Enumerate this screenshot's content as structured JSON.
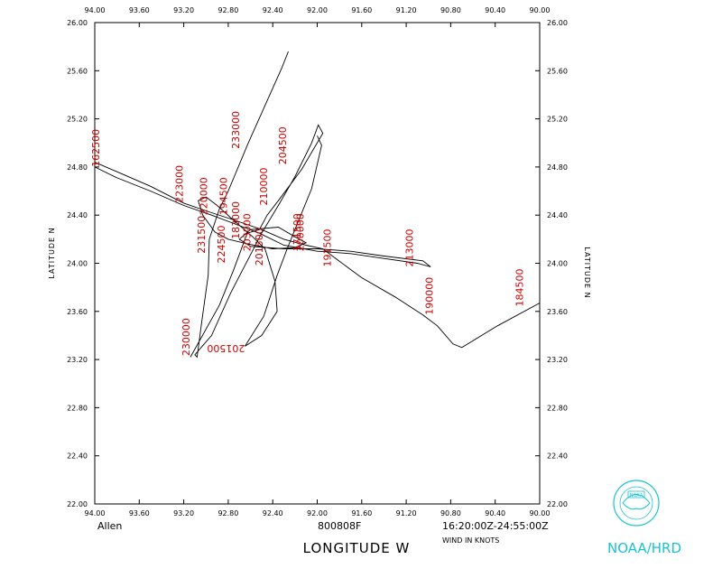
{
  "chart_data": {
    "type": "line",
    "xlabel": "LONGITUDE  W",
    "ylabel": "LATITUDE  N",
    "xlim": [
      94.0,
      90.0
    ],
    "ylim": [
      22.0,
      26.0
    ],
    "x_ticks": [
      "94.00",
      "93.60",
      "93.20",
      "92.80",
      "92.40",
      "92.00",
      "91.60",
      "91.20",
      "90.80",
      "90.40",
      "90.00"
    ],
    "y_ticks": [
      "22.00",
      "22.40",
      "22.80",
      "23.20",
      "23.60",
      "24.00",
      "24.40",
      "24.80",
      "25.20",
      "25.60",
      "26.00"
    ],
    "storm_name": "Allen",
    "flight_id": "800808F",
    "time_range": "16:20:00Z-24:55:00Z",
    "wind_units": "WIND IN KNOTS",
    "series": [
      {
        "points": [
          [
            90.0,
            23.67
          ],
          [
            90.38,
            23.48
          ],
          [
            90.7,
            23.3
          ],
          [
            90.78,
            23.33
          ],
          [
            90.92,
            23.48
          ],
          [
            91.05,
            23.57
          ],
          [
            91.3,
            23.72
          ],
          [
            91.6,
            23.88
          ],
          [
            91.82,
            24.03
          ],
          [
            91.95,
            24.12
          ],
          [
            92.1,
            24.15
          ],
          [
            92.3,
            24.2
          ],
          [
            92.5,
            24.28
          ],
          [
            92.75,
            24.36
          ],
          [
            92.95,
            24.42
          ],
          [
            93.2,
            24.5
          ],
          [
            93.5,
            24.64
          ],
          [
            93.8,
            24.76
          ],
          [
            94.0,
            24.84
          ]
        ]
      },
      {
        "points": [
          [
            94.0,
            24.8
          ],
          [
            93.8,
            24.71
          ],
          [
            93.5,
            24.6
          ],
          [
            93.2,
            24.48
          ],
          [
            92.95,
            24.4
          ],
          [
            92.75,
            24.33
          ],
          [
            92.52,
            24.25
          ],
          [
            92.3,
            24.15
          ],
          [
            92.0,
            24.1
          ],
          [
            91.7,
            24.08
          ],
          [
            91.4,
            24.04
          ],
          [
            91.1,
            24.0
          ],
          [
            90.98,
            23.97
          ],
          [
            91.05,
            24.02
          ],
          [
            91.4,
            24.06
          ],
          [
            91.7,
            24.1
          ],
          [
            92.0,
            24.12
          ],
          [
            92.3,
            24.12
          ],
          [
            92.6,
            24.14
          ],
          [
            92.7,
            24.2
          ],
          [
            92.6,
            24.28
          ],
          [
            92.35,
            24.3
          ],
          [
            92.2,
            24.22
          ],
          [
            92.1,
            24.17
          ],
          [
            92.2,
            24.13
          ],
          [
            92.4,
            24.12
          ],
          [
            92.62,
            24.16
          ],
          [
            92.8,
            24.2
          ],
          [
            92.92,
            24.26
          ],
          [
            93.03,
            24.4
          ],
          [
            93.07,
            24.52
          ],
          [
            93.0,
            24.55
          ],
          [
            92.9,
            24.48
          ],
          [
            92.78,
            24.38
          ],
          [
            92.58,
            24.22
          ],
          [
            92.47,
            24.12
          ],
          [
            92.38,
            23.85
          ],
          [
            92.36,
            23.6
          ],
          [
            92.5,
            23.4
          ],
          [
            92.65,
            23.31
          ],
          [
            92.48,
            23.56
          ],
          [
            92.36,
            23.9
          ],
          [
            92.27,
            24.12
          ],
          [
            92.2,
            24.28
          ],
          [
            92.05,
            24.62
          ],
          [
            91.96,
            24.98
          ],
          [
            92.0,
            25.06
          ]
        ]
      },
      {
        "points": [
          [
            93.14,
            23.22
          ],
          [
            92.88,
            23.65
          ],
          [
            92.75,
            23.95
          ],
          [
            92.63,
            24.25
          ],
          [
            92.52,
            24.28
          ],
          [
            92.45,
            24.4
          ],
          [
            92.35,
            24.52
          ],
          [
            92.14,
            24.78
          ],
          [
            91.95,
            25.08
          ],
          [
            91.99,
            25.15
          ],
          [
            92.05,
            25.0
          ],
          [
            92.2,
            24.72
          ],
          [
            92.35,
            24.48
          ],
          [
            92.5,
            24.25
          ],
          [
            92.78,
            23.75
          ],
          [
            92.95,
            23.4
          ],
          [
            93.1,
            23.24
          ],
          [
            93.08,
            23.22
          ],
          [
            93.04,
            23.5
          ],
          [
            92.98,
            23.9
          ],
          [
            92.97,
            24.2
          ],
          [
            92.88,
            24.45
          ],
          [
            92.8,
            24.6
          ],
          [
            92.62,
            25.0
          ],
          [
            92.45,
            25.35
          ],
          [
            92.32,
            25.62
          ],
          [
            92.26,
            25.76
          ]
        ]
      }
    ],
    "annotations": [
      {
        "text": "162500",
        "lon": 93.96,
        "lat": 24.8,
        "rot": -90
      },
      {
        "text": "223000",
        "lon": 93.21,
        "lat": 24.5,
        "rot": -90
      },
      {
        "text": "220000",
        "lon": 92.99,
        "lat": 24.4,
        "rot": -90
      },
      {
        "text": "231500",
        "lon": 93.01,
        "lat": 24.08,
        "rot": -90
      },
      {
        "text": "194500",
        "lon": 92.81,
        "lat": 24.4,
        "rot": -90
      },
      {
        "text": "224500",
        "lon": 92.83,
        "lat": 24.0,
        "rot": -90
      },
      {
        "text": "183000",
        "lon": 92.7,
        "lat": 24.2,
        "rot": -90
      },
      {
        "text": "233000",
        "lon": 92.7,
        "lat": 24.95,
        "rot": -90
      },
      {
        "text": "204500",
        "lon": 92.28,
        "lat": 24.82,
        "rot": -90
      },
      {
        "text": "210000",
        "lon": 92.45,
        "lat": 24.48,
        "rot": -90
      },
      {
        "text": "203000",
        "lon": 92.6,
        "lat": 24.1,
        "rot": -90
      },
      {
        "text": "201500",
        "lon": 92.49,
        "lat": 23.98,
        "rot": -90
      },
      {
        "text": "171500",
        "lon": 92.15,
        "lat": 24.1,
        "rot": -90
      },
      {
        "text": "200000",
        "lon": 92.12,
        "lat": 24.1,
        "rot": -90
      },
      {
        "text": "191500",
        "lon": 91.88,
        "lat": 23.97,
        "rot": -90
      },
      {
        "text": "213000",
        "lon": 91.14,
        "lat": 23.97,
        "rot": -90
      },
      {
        "text": "190000",
        "lon": 90.96,
        "lat": 23.57,
        "rot": -90
      },
      {
        "text": "184500",
        "lon": 90.15,
        "lat": 23.64,
        "rot": -90
      },
      {
        "text": "230000",
        "lon": 93.15,
        "lat": 23.23,
        "rot": -90
      },
      {
        "text": "201500",
        "lon": 92.65,
        "lat": 23.32,
        "rot": 180
      }
    ]
  },
  "logo": {
    "seal_text": "NOAA",
    "caption": "NOAA/HRD"
  }
}
